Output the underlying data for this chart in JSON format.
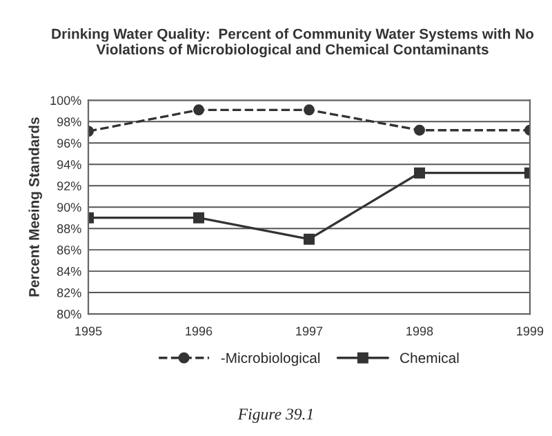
{
  "chart_data": {
    "type": "line",
    "title": "Drinking Water Quality:  Percent of Community Water Systems with No Violations of Microbiological and Chemical Contaminants",
    "ylabel": "Percent Meeing Standards",
    "categories": [
      "1995",
      "1996",
      "1997",
      "1998",
      "1999"
    ],
    "series": [
      {
        "name": "-Microbiological",
        "color": "#333333",
        "values": [
          97.1,
          99.1,
          99.1,
          97.2,
          97.2
        ],
        "marker": "circle",
        "line_style": "dashed"
      },
      {
        "name": "Chemical",
        "color": "#333333",
        "values": [
          89,
          89,
          87,
          93.2,
          93.2
        ],
        "marker": "square",
        "line_style": "solid"
      }
    ],
    "ylim": [
      80,
      100
    ],
    "yticks": [
      {
        "value": 80,
        "label": "80%"
      },
      {
        "value": 82,
        "label": "82%"
      },
      {
        "value": 84,
        "label": "84%"
      },
      {
        "value": 86,
        "label": "86%"
      },
      {
        "value": 88,
        "label": "88%"
      },
      {
        "value": 90,
        "label": "90%"
      },
      {
        "value": 92,
        "label": "92%"
      },
      {
        "value": 94,
        "label": "94%"
      },
      {
        "value": 96,
        "label": "96%"
      },
      {
        "value": 98,
        "label": "98%"
      },
      {
        "value": 100,
        "label": "100%"
      }
    ],
    "grid": "y",
    "legend": "bottom",
    "annotations": [
      "Figure 39.1"
    ]
  }
}
